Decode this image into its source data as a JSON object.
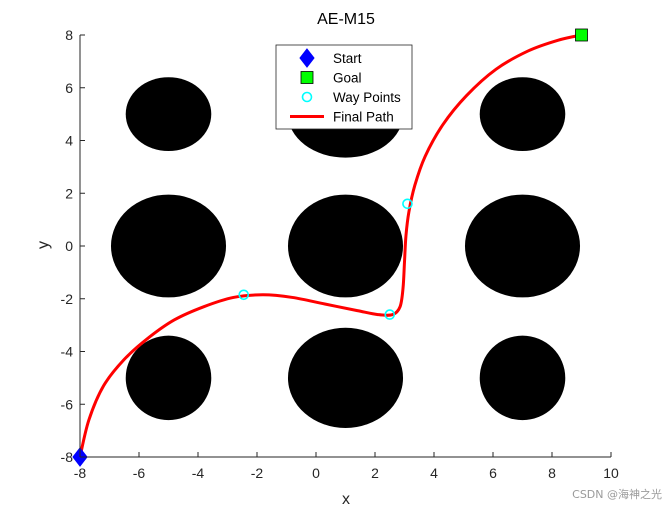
{
  "chart_data": {
    "type": "scatter",
    "title": "AE-M15",
    "xlabel": "x",
    "ylabel": "y",
    "xlim": [
      -8,
      10
    ],
    "ylim": [
      -8,
      8
    ],
    "xticks": [
      "-8",
      "-6",
      "-4",
      "-2",
      "0",
      "2",
      "4",
      "6",
      "8",
      "10"
    ],
    "yticks": [
      "-8",
      "-6",
      "-4",
      "-2",
      "0",
      "2",
      "4",
      "6",
      "8"
    ],
    "grid": false,
    "legend_position": "top-center",
    "obstacles": [
      {
        "cx": -5,
        "cy": 5,
        "rx": 1.45,
        "ry": 1.4
      },
      {
        "cx": 1,
        "cy": 5,
        "rx": 1.95,
        "ry": 1.65
      },
      {
        "cx": 7,
        "cy": 5,
        "rx": 1.45,
        "ry": 1.4
      },
      {
        "cx": -5,
        "cy": 0,
        "rx": 1.95,
        "ry": 1.95
      },
      {
        "cx": 1,
        "cy": 0,
        "rx": 1.95,
        "ry": 1.95
      },
      {
        "cx": 7,
        "cy": 0,
        "rx": 1.95,
        "ry": 1.95
      },
      {
        "cx": -5,
        "cy": -5,
        "rx": 1.45,
        "ry": 1.6
      },
      {
        "cx": 1,
        "cy": -5,
        "rx": 1.95,
        "ry": 1.9
      },
      {
        "cx": 7,
        "cy": -5,
        "rx": 1.45,
        "ry": 1.6
      }
    ],
    "series": [
      {
        "name": "Start",
        "marker": "diamond",
        "color": "#0000ff",
        "points": [
          [
            -8,
            -8
          ]
        ]
      },
      {
        "name": "Goal",
        "marker": "square",
        "color": "#00ff00",
        "points": [
          [
            9,
            8
          ]
        ]
      },
      {
        "name": "Way Points",
        "marker": "circle",
        "color": "#00ffff",
        "points": [
          [
            -2.45,
            -1.85
          ],
          [
            2.5,
            -2.6
          ],
          [
            3.1,
            1.6
          ]
        ]
      },
      {
        "name": "Final Path",
        "marker": "line",
        "color": "#ff0000",
        "points": [
          [
            -8,
            -8
          ],
          [
            -7.7,
            -6.6
          ],
          [
            -7.2,
            -5.3
          ],
          [
            -6.5,
            -4.3
          ],
          [
            -5.7,
            -3.5
          ],
          [
            -4.8,
            -2.8
          ],
          [
            -3.8,
            -2.3
          ],
          [
            -2.8,
            -1.95
          ],
          [
            -1.8,
            -1.85
          ],
          [
            -0.8,
            -1.95
          ],
          [
            0.3,
            -2.2
          ],
          [
            1.4,
            -2.45
          ],
          [
            2.1,
            -2.6
          ],
          [
            2.6,
            -2.6
          ],
          [
            2.85,
            -2.3
          ],
          [
            2.95,
            -1.6
          ],
          [
            3.0,
            -0.6
          ],
          [
            3.05,
            0.4
          ],
          [
            3.15,
            1.3
          ],
          [
            3.35,
            2.3
          ],
          [
            3.7,
            3.4
          ],
          [
            4.3,
            4.6
          ],
          [
            5.1,
            5.7
          ],
          [
            6.1,
            6.7
          ],
          [
            7.2,
            7.4
          ],
          [
            8.2,
            7.8
          ],
          [
            9,
            8
          ]
        ]
      }
    ]
  },
  "watermark": "CSDN @海神之光"
}
